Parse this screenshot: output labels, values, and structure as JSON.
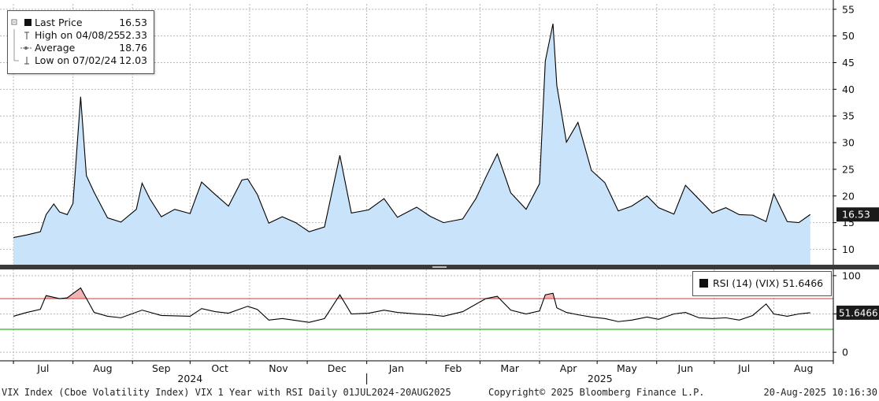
{
  "chart_data": {
    "type": "area",
    "price_panel": {
      "series_name": "Last Price",
      "x": [
        "2024-07-01",
        "2024-07-08",
        "2024-07-15",
        "2024-07-18",
        "2024-07-22",
        "2024-07-25",
        "2024-07-29",
        "2024-08-01",
        "2024-08-05",
        "2024-08-08",
        "2024-08-12",
        "2024-08-19",
        "2024-08-26",
        "2024-09-03",
        "2024-09-06",
        "2024-09-10",
        "2024-09-16",
        "2024-09-23",
        "2024-10-01",
        "2024-10-07",
        "2024-10-14",
        "2024-10-21",
        "2024-10-28",
        "2024-10-31",
        "2024-11-05",
        "2024-11-11",
        "2024-11-18",
        "2024-11-25",
        "2024-12-02",
        "2024-12-10",
        "2024-12-18",
        "2024-12-24",
        "2025-01-02",
        "2025-01-10",
        "2025-01-17",
        "2025-01-27",
        "2025-02-03",
        "2025-02-10",
        "2025-02-20",
        "2025-02-27",
        "2025-03-04",
        "2025-03-10",
        "2025-03-17",
        "2025-03-25",
        "2025-04-01",
        "2025-04-04",
        "2025-04-08",
        "2025-04-10",
        "2025-04-15",
        "2025-04-21",
        "2025-04-28",
        "2025-05-05",
        "2025-05-12",
        "2025-05-19",
        "2025-05-27",
        "2025-06-02",
        "2025-06-10",
        "2025-06-16",
        "2025-06-23",
        "2025-06-30",
        "2025-07-07",
        "2025-07-14",
        "2025-07-21",
        "2025-07-28",
        "2025-08-01",
        "2025-08-08",
        "2025-08-14",
        "2025-08-20"
      ],
      "values": [
        12.2,
        12.7,
        13.3,
        16.5,
        18.5,
        17.0,
        16.5,
        18.6,
        38.6,
        23.8,
        20.7,
        15.9,
        15.1,
        17.5,
        22.4,
        19.5,
        16.1,
        17.5,
        16.7,
        22.6,
        20.3,
        18.1,
        23.0,
        23.2,
        20.3,
        14.9,
        16.1,
        15.0,
        13.3,
        14.2,
        27.6,
        16.8,
        17.4,
        19.5,
        16.0,
        17.9,
        16.2,
        15.0,
        15.7,
        19.6,
        23.5,
        27.9,
        20.6,
        17.5,
        22.3,
        45.3,
        52.3,
        40.7,
        30.1,
        33.8,
        24.8,
        22.5,
        17.2,
        18.1,
        20.0,
        17.8,
        16.6,
        22.0,
        19.4,
        16.8,
        17.8,
        16.5,
        16.4,
        15.2,
        20.4,
        15.2,
        15.0,
        16.53
      ],
      "ylim": [
        8,
        56
      ],
      "yticks": [
        "10",
        "15",
        "20",
        "25",
        "30",
        "35",
        "40",
        "45",
        "50",
        "55"
      ],
      "last_label": "16.53"
    },
    "rsi_panel": {
      "series_name": "RSI (14) (VIX)",
      "x": [
        "2024-07-01",
        "2024-07-08",
        "2024-07-15",
        "2024-07-18",
        "2024-07-25",
        "2024-07-29",
        "2024-08-05",
        "2024-08-12",
        "2024-08-19",
        "2024-08-26",
        "2024-09-06",
        "2024-09-16",
        "2024-10-01",
        "2024-10-07",
        "2024-10-14",
        "2024-10-21",
        "2024-10-31",
        "2024-11-05",
        "2024-11-11",
        "2024-11-18",
        "2024-12-02",
        "2024-12-10",
        "2024-12-18",
        "2024-12-24",
        "2025-01-02",
        "2025-01-10",
        "2025-01-17",
        "2025-01-27",
        "2025-02-03",
        "2025-02-10",
        "2025-02-20",
        "2025-03-04",
        "2025-03-10",
        "2025-03-17",
        "2025-03-25",
        "2025-04-01",
        "2025-04-04",
        "2025-04-08",
        "2025-04-10",
        "2025-04-15",
        "2025-04-21",
        "2025-04-28",
        "2025-05-05",
        "2025-05-12",
        "2025-05-19",
        "2025-05-27",
        "2025-06-02",
        "2025-06-10",
        "2025-06-16",
        "2025-06-23",
        "2025-06-30",
        "2025-07-07",
        "2025-07-14",
        "2025-07-21",
        "2025-07-28",
        "2025-08-01",
        "2025-08-08",
        "2025-08-14",
        "2025-08-20"
      ],
      "values": [
        47,
        52,
        56,
        74,
        70,
        71,
        84,
        52,
        47,
        45,
        55,
        48,
        47,
        57,
        53,
        51,
        60,
        56,
        42,
        44,
        39,
        44,
        75,
        50,
        51,
        55,
        52,
        50,
        49,
        47,
        53,
        70,
        73,
        55,
        50,
        54,
        75,
        77,
        58,
        52,
        49,
        46,
        44,
        40,
        42,
        46,
        43,
        50,
        52,
        45,
        44,
        45,
        42,
        48,
        63,
        50,
        47,
        50,
        51.6466
      ],
      "ylim": [
        -5,
        104
      ],
      "yticks": [
        "0",
        "50",
        "100"
      ],
      "overbought": 70,
      "oversold": 30,
      "last_label": "51.6466"
    },
    "x_tick_labels": [
      "Jul",
      "Aug",
      "Sep",
      "Oct",
      "Nov",
      "Dec",
      "Jan",
      "Feb",
      "Mar",
      "Apr",
      "May",
      "Jun",
      "Jul",
      "Aug"
    ],
    "year_labels": [
      "2024",
      "2025"
    ],
    "grid": true,
    "colors": {
      "area_fill": "#c9e3fb",
      "line": "#000000",
      "overbought": "#d05050",
      "oversold": "#30b030",
      "over_fill": "#f4b3b3"
    }
  },
  "legend": {
    "rows": [
      {
        "label": "Last Price",
        "value": "16.53"
      },
      {
        "label": "High on 04/08/25",
        "value": "52.33"
      },
      {
        "label": "Average",
        "value": "18.76"
      },
      {
        "label": "Low on 07/02/24",
        "value": "12.03"
      }
    ]
  },
  "rsi_legend": {
    "label": "RSI (14) (VIX) 51.6466"
  },
  "footer": {
    "left": "VIX Index (Cboe Volatility Index) VIX 1 Year with RSI  Daily 01JUL2024-20AUG2025",
    "center": "Copyright© 2025 Bloomberg Finance L.P.",
    "right": "20-Aug-2025 10:16:30"
  }
}
